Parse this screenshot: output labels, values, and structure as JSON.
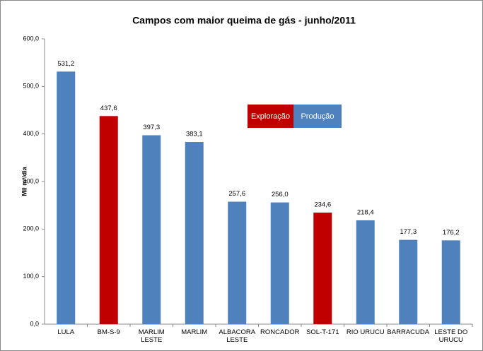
{
  "chart_data": {
    "type": "bar",
    "title": "Campos com maior queima de gás - junho/2011",
    "y_label": "Mil m³/dia",
    "categories": [
      "LULA",
      "BM-S-9",
      "MARLIM LESTE",
      "MARLIM",
      "ALBACORA LESTE",
      "RONCADOR",
      "SOL-T-171",
      "RIO URUCU",
      "BARRACUDA",
      "LESTE DO URUCU"
    ],
    "values": [
      531.2,
      437.6,
      397.3,
      383.1,
      257.6,
      256.0,
      234.6,
      218.4,
      177.3,
      176.2
    ],
    "value_labels": [
      "531,2",
      "437,6",
      "397,3",
      "383,1",
      "257,6",
      "256,0",
      "234,6",
      "218,4",
      "177,3",
      "176,2"
    ],
    "colors": [
      "#4f81bd",
      "#c00000",
      "#4f81bd",
      "#4f81bd",
      "#4f81bd",
      "#4f81bd",
      "#c00000",
      "#4f81bd",
      "#4f81bd",
      "#4f81bd"
    ],
    "legend": [
      {
        "name": "Exploração",
        "color": "#c00000"
      },
      {
        "name": "Produção",
        "color": "#4f81bd"
      }
    ],
    "ylim": [
      0,
      600
    ],
    "yticks": [
      {
        "value": 0,
        "label": "0,0"
      },
      {
        "value": 100,
        "label": "100,0"
      },
      {
        "value": 200,
        "label": "200,0"
      },
      {
        "value": 300,
        "label": "300,0"
      },
      {
        "value": 400,
        "label": "400,0"
      },
      {
        "value": 500,
        "label": "500,0"
      },
      {
        "value": 600,
        "label": "600,0"
      }
    ]
  }
}
